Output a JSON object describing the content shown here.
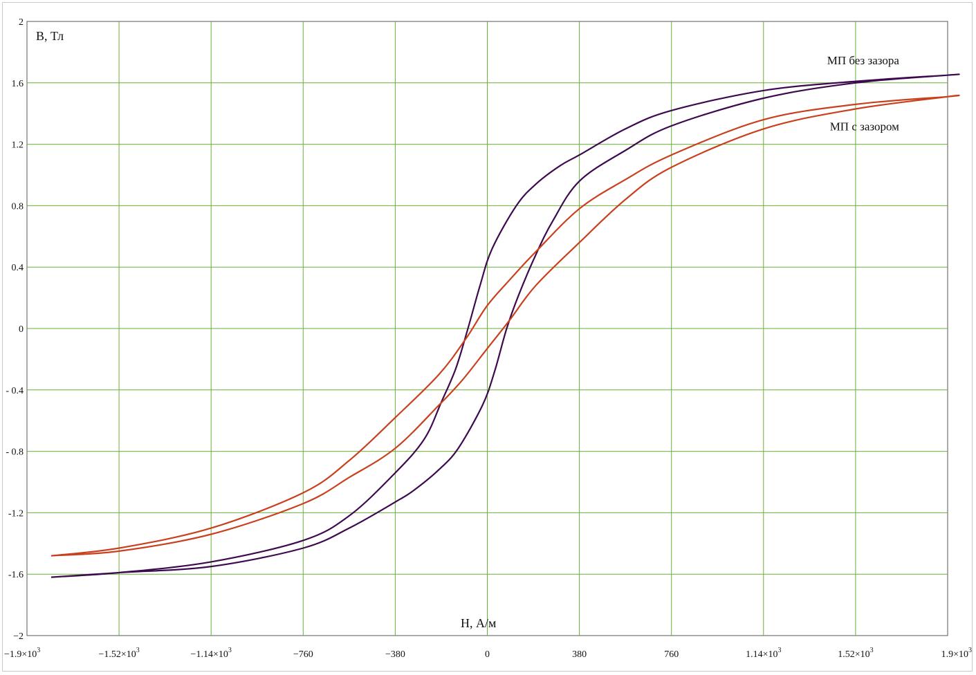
{
  "chart_data": {
    "type": "line",
    "ylabel": "B, Тл",
    "xlabel": "H, А/м",
    "xlim": [
      -1900,
      1900
    ],
    "ylim": [
      -2,
      2
    ],
    "x_ticks": [
      {
        "value": -1900,
        "label": "−1.9×10",
        "exp": "3"
      },
      {
        "value": -1520,
        "label": "−1.52×10",
        "exp": "3"
      },
      {
        "value": -1140,
        "label": "−1.14×10",
        "exp": "3"
      },
      {
        "value": -760,
        "label": "−760",
        "exp": ""
      },
      {
        "value": -380,
        "label": "−380",
        "exp": ""
      },
      {
        "value": 0,
        "label": "0",
        "exp": ""
      },
      {
        "value": 380,
        "label": "380",
        "exp": ""
      },
      {
        "value": 760,
        "label": "760",
        "exp": ""
      },
      {
        "value": 1140,
        "label": "1.14×10",
        "exp": "3"
      },
      {
        "value": 1520,
        "label": "1.52×10",
        "exp": "3"
      },
      {
        "value": 1900,
        "label": "1.9×10",
        "exp": "3"
      }
    ],
    "y_ticks": [
      {
        "value": 2,
        "label": "2"
      },
      {
        "value": 1.6,
        "label": "1.6"
      },
      {
        "value": 1.2,
        "label": "1.2"
      },
      {
        "value": 0.8,
        "label": "0.8"
      },
      {
        "value": 0.4,
        "label": "0.4"
      },
      {
        "value": 0,
        "label": "0"
      },
      {
        "value": -0.4,
        "label": "- 0.4"
      },
      {
        "value": -0.8,
        "label": "- 0.8"
      },
      {
        "value": -1.2,
        "label": "-1.2"
      },
      {
        "value": -1.6,
        "label": "-1.6"
      },
      {
        "value": -2,
        "label": "−2"
      }
    ],
    "grid": true,
    "colors": {
      "grid": "#66b032",
      "axis": "#555555",
      "no_gap": "#3d0a4f",
      "with_gap": "#c8401e"
    },
    "series": [
      {
        "name": "МП без зазора",
        "color": "#3d0a4f",
        "label_value": {
          "x": 1700,
          "y": 1.72
        },
        "points": [
          [
            -1800,
            -1.62
          ],
          [
            -1520,
            -1.59
          ],
          [
            -1140,
            -1.52
          ],
          [
            -760,
            -1.38
          ],
          [
            -570,
            -1.22
          ],
          [
            -380,
            -0.94
          ],
          [
            -260,
            -0.72
          ],
          [
            -190,
            -0.48
          ],
          [
            -130,
            -0.26
          ],
          [
            -80,
            0.0
          ],
          [
            -30,
            0.28
          ],
          [
            20,
            0.52
          ],
          [
            120,
            0.8
          ],
          [
            200,
            0.94
          ],
          [
            300,
            1.06
          ],
          [
            380,
            1.13
          ],
          [
            570,
            1.3
          ],
          [
            760,
            1.42
          ],
          [
            1140,
            1.55
          ],
          [
            1520,
            1.61
          ],
          [
            1900,
            1.65
          ],
          [
            1900,
            1.65
          ],
          [
            1520,
            1.6
          ],
          [
            1140,
            1.5
          ],
          [
            760,
            1.32
          ],
          [
            570,
            1.16
          ],
          [
            380,
            0.96
          ],
          [
            270,
            0.7
          ],
          [
            200,
            0.48
          ],
          [
            130,
            0.22
          ],
          [
            80,
            0.0
          ],
          [
            30,
            -0.28
          ],
          [
            -20,
            -0.5
          ],
          [
            -120,
            -0.78
          ],
          [
            -200,
            -0.92
          ],
          [
            -300,
            -1.05
          ],
          [
            -380,
            -1.13
          ],
          [
            -570,
            -1.3
          ],
          [
            -760,
            -1.43
          ],
          [
            -1140,
            -1.55
          ],
          [
            -1520,
            -1.59
          ],
          [
            -1800,
            -1.62
          ]
        ]
      },
      {
        "name": "МП с зазором",
        "color": "#c8401e",
        "label_value": {
          "x": 1700,
          "y": 1.29
        },
        "points": [
          [
            -1800,
            -1.48
          ],
          [
            -1520,
            -1.43
          ],
          [
            -1140,
            -1.3
          ],
          [
            -760,
            -1.07
          ],
          [
            -570,
            -0.86
          ],
          [
            -380,
            -0.58
          ],
          [
            -200,
            -0.3
          ],
          [
            -90,
            -0.07
          ],
          [
            0,
            0.15
          ],
          [
            100,
            0.33
          ],
          [
            200,
            0.5
          ],
          [
            380,
            0.78
          ],
          [
            570,
            0.97
          ],
          [
            760,
            1.13
          ],
          [
            1140,
            1.36
          ],
          [
            1520,
            1.46
          ],
          [
            1900,
            1.51
          ],
          [
            1900,
            1.51
          ],
          [
            1520,
            1.43
          ],
          [
            1140,
            1.3
          ],
          [
            760,
            1.05
          ],
          [
            570,
            0.84
          ],
          [
            380,
            0.56
          ],
          [
            200,
            0.28
          ],
          [
            90,
            0.05
          ],
          [
            0,
            -0.13
          ],
          [
            -100,
            -0.33
          ],
          [
            -200,
            -0.5
          ],
          [
            -380,
            -0.78
          ],
          [
            -570,
            -0.97
          ],
          [
            -760,
            -1.14
          ],
          [
            -1140,
            -1.34
          ],
          [
            -1520,
            -1.45
          ],
          [
            -1800,
            -1.48
          ]
        ]
      }
    ]
  }
}
